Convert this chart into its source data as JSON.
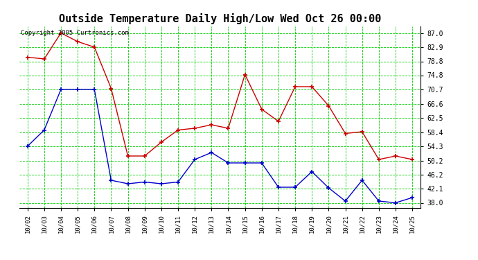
{
  "title": "Outside Temperature Daily High/Low Wed Oct 26 00:00",
  "copyright_text": "Copyright 2005 Curtronics.com",
  "x_labels": [
    "10/02",
    "10/03",
    "10/04",
    "10/05",
    "10/06",
    "10/07",
    "10/08",
    "10/09",
    "10/10",
    "10/11",
    "10/12",
    "10/13",
    "10/14",
    "10/15",
    "10/16",
    "10/17",
    "10/18",
    "10/19",
    "10/20",
    "10/21",
    "10/22",
    "10/23",
    "10/24",
    "10/25"
  ],
  "high_values": [
    80.0,
    79.5,
    87.0,
    84.5,
    82.9,
    71.0,
    51.5,
    51.5,
    55.5,
    59.0,
    59.5,
    60.5,
    59.5,
    75.0,
    65.0,
    61.5,
    71.5,
    71.5,
    66.0,
    58.0,
    58.5,
    50.5,
    51.5,
    50.5
  ],
  "low_values": [
    54.3,
    59.0,
    70.7,
    70.7,
    70.7,
    44.5,
    43.5,
    44.0,
    43.5,
    44.0,
    50.5,
    52.5,
    49.5,
    49.5,
    49.5,
    42.5,
    42.5,
    47.0,
    42.3,
    38.5,
    44.5,
    38.5,
    38.0,
    39.5
  ],
  "high_color": "#cc0000",
  "low_color": "#0000cc",
  "background_color": "#ffffff",
  "grid_color": "#00cc00",
  "title_fontsize": 11,
  "y_ticks": [
    38.0,
    42.1,
    46.2,
    50.2,
    54.3,
    58.4,
    62.5,
    66.6,
    70.7,
    74.8,
    78.8,
    82.9,
    87.0
  ],
  "ylim": [
    36.5,
    89.0
  ],
  "fig_width": 6.9,
  "fig_height": 3.75,
  "dpi": 100
}
